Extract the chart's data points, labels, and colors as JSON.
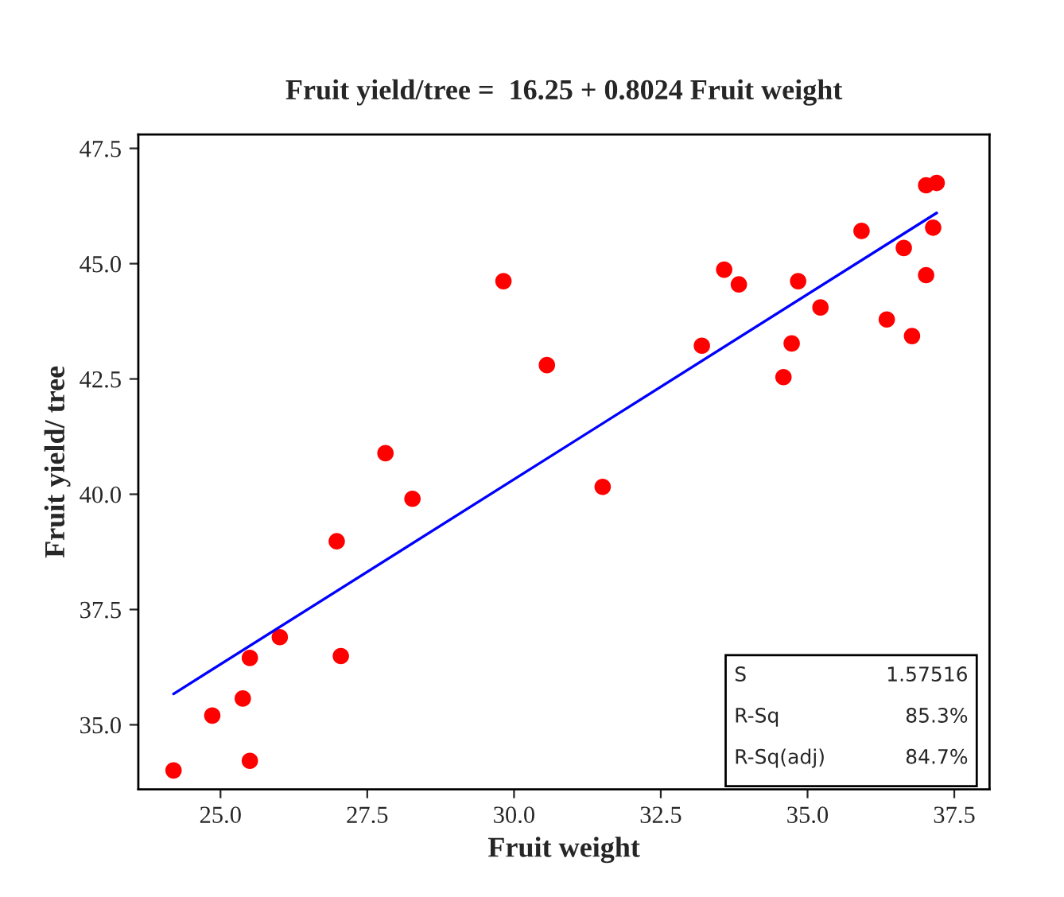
{
  "chart_data": {
    "type": "scatter",
    "title": "Fruit yield/tree =  16.25 + 0.8024 Fruit weight",
    "xlabel": "Fruit weight",
    "ylabel": "Fruit yield/ tree",
    "series": [
      {
        "color": "#ff0000",
        "marker": "circle",
        "x": [
          24.2,
          24.86,
          25.38,
          25.5,
          25.5,
          26.01,
          26.98,
          27.05,
          27.81,
          28.27,
          29.82,
          30.56,
          31.51,
          33.2,
          33.58,
          33.83,
          34.59,
          34.73,
          34.84,
          35.22,
          35.92,
          36.35,
          36.64,
          36.78,
          37.02,
          37.2,
          37.14,
          37.02
        ],
        "values": [
          34.01,
          35.2,
          35.57,
          34.22,
          36.45,
          36.9,
          38.98,
          36.49,
          40.89,
          39.9,
          44.62,
          42.8,
          40.16,
          43.22,
          44.87,
          44.55,
          42.54,
          43.27,
          44.62,
          44.05,
          45.71,
          43.79,
          45.34,
          43.43,
          46.7,
          46.75,
          45.78,
          44.75
        ]
      },
      {
        "type": "line",
        "color": "#0000ff",
        "x": [
          24.2,
          37.2
        ],
        "values": [
          35.67,
          46.1
        ]
      }
    ],
    "xlim": [
      23.6,
      38.1
    ],
    "ylim": [
      33.6,
      47.8
    ],
    "xticks": [
      {
        "value": 25,
        "label": "25.0"
      },
      {
        "value": 27.5,
        "label": "27.5"
      },
      {
        "value": 30,
        "label": "30.0"
      },
      {
        "value": 32.5,
        "label": "32.5"
      },
      {
        "value": 35,
        "label": "35.0"
      },
      {
        "value": 37.5,
        "label": "37.5"
      }
    ],
    "yticks": [
      {
        "value": 35,
        "label": "35.0"
      },
      {
        "value": 37.5,
        "label": "37.5"
      },
      {
        "value": 40,
        "label": "40.0"
      },
      {
        "value": 42.5,
        "label": "42.5"
      },
      {
        "value": 45,
        "label": "45.0"
      },
      {
        "value": 47.5,
        "label": "47.5"
      }
    ],
    "grid": false,
    "legend": false,
    "annotations": [
      "S",
      "1.57516",
      "R-Sq",
      "85.3%",
      "R-Sq(adj)",
      "84.7%"
    ]
  }
}
